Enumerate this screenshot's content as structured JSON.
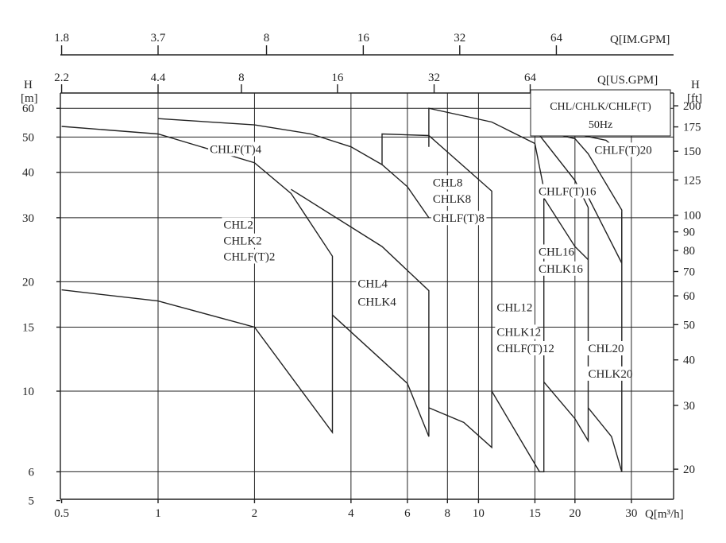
{
  "chart_data": {
    "type": "line",
    "x_axis": {
      "label": "Q[m³/h]",
      "scale": "log",
      "range": [
        0.5,
        40
      ],
      "ticks": [
        0.5,
        1,
        2,
        4,
        6,
        8,
        10,
        15,
        20,
        30
      ],
      "tick_labels": [
        "0.5",
        "1",
        "2",
        "4",
        "6",
        "8",
        "10",
        "15",
        "20",
        "30"
      ]
    },
    "top_axis_im": {
      "label": "Q[IM.GPM]",
      "ticks": [
        {
          "label": "1.8",
          "q": 0.5
        },
        {
          "label": "3.7",
          "q": 1.0
        },
        {
          "label": "8",
          "q": 2.18
        },
        {
          "label": "16",
          "q": 4.37
        },
        {
          "label": "32",
          "q": 8.74
        },
        {
          "label": "64",
          "q": 17.5
        }
      ]
    },
    "top_axis_us": {
      "label": "Q[US.GPM]",
      "ticks": [
        {
          "label": "2.2",
          "q": 0.5
        },
        {
          "label": "4.4",
          "q": 1.0
        },
        {
          "label": "8",
          "q": 1.82
        },
        {
          "label": "16",
          "q": 3.63
        },
        {
          "label": "32",
          "q": 7.27
        },
        {
          "label": "64",
          "q": 14.5
        }
      ]
    },
    "y_axis": {
      "title": "H",
      "unit": "[m]",
      "scale": "log",
      "range": [
        5,
        65
      ],
      "ticks": [
        5,
        6,
        10,
        15,
        20,
        30,
        40,
        50,
        60
      ],
      "tick_labels": [
        "5",
        "6",
        "10",
        "15",
        "20",
        "30",
        "40",
        "50",
        "60"
      ]
    },
    "y_axis_right": {
      "title": "H",
      "unit": "[ft]",
      "ticks": [
        {
          "label": "200",
          "m": 60.96
        },
        {
          "label": "175",
          "m": 53.34
        },
        {
          "label": "150",
          "m": 45.72
        },
        {
          "label": "125",
          "m": 38.1
        },
        {
          "label": "100",
          "m": 30.48
        },
        {
          "label": "90",
          "m": 27.43
        },
        {
          "label": "80",
          "m": 24.38
        },
        {
          "label": "70",
          "m": 21.34
        },
        {
          "label": "60",
          "m": 18.29
        },
        {
          "label": "50",
          "m": 15.24
        },
        {
          "label": "40",
          "m": 12.19
        },
        {
          "label": "30",
          "m": 9.14
        },
        {
          "label": "20",
          "m": 6.1
        }
      ]
    },
    "grid_x": [
      1,
      2,
      4,
      6,
      8,
      10,
      15,
      20,
      30
    ],
    "grid_y": [
      6,
      10,
      15,
      20,
      30,
      40,
      50,
      60
    ],
    "legend_box": {
      "line1": "CHL/CHLK/CHLF(T)",
      "line2": "50Hz"
    },
    "series": [
      {
        "points": [
          [
            0.5,
            19.0
          ],
          [
            1,
            17.7
          ],
          [
            2,
            15.0
          ],
          [
            3.5,
            7.7
          ],
          [
            3.5,
            23.5
          ],
          [
            2.6,
            35.0
          ],
          [
            2,
            42.5
          ],
          [
            1,
            51.0
          ],
          [
            0.5,
            53.5
          ]
        ]
      },
      {
        "points": [
          [
            3.5,
            16.2
          ],
          [
            6,
            10.5
          ],
          [
            7,
            7.5
          ],
          [
            7,
            18.9
          ],
          [
            5,
            25.0
          ],
          [
            2.6,
            35.9
          ]
        ]
      },
      {
        "points": [
          [
            1,
            56.2
          ],
          [
            2,
            54.0
          ],
          [
            3,
            51.0
          ],
          [
            4,
            47.0
          ],
          [
            5,
            42.0
          ],
          [
            6,
            36.5
          ],
          [
            7,
            30.0
          ]
        ]
      },
      {
        "points": [
          [
            7,
            9.0
          ],
          [
            9,
            8.2
          ],
          [
            11,
            7.0
          ],
          [
            11,
            35.5
          ],
          [
            7,
            50.5
          ],
          [
            5,
            51.0
          ],
          [
            5,
            42.0
          ]
        ]
      },
      {
        "points": [
          [
            11,
            10.0
          ],
          [
            15.5,
            6.0
          ],
          [
            16,
            6.0
          ],
          [
            16,
            34.0
          ],
          [
            20,
            25.0
          ],
          [
            22,
            23.0
          ]
        ]
      },
      {
        "points": [
          [
            7,
            47.0
          ],
          [
            7,
            60.0
          ],
          [
            11,
            55.0
          ],
          [
            15,
            48.0
          ],
          [
            16,
            36.0
          ]
        ]
      },
      {
        "points": [
          [
            16,
            10.6
          ],
          [
            20,
            8.4
          ],
          [
            22,
            7.3
          ],
          [
            22,
            32.0
          ],
          [
            20,
            38.0
          ],
          [
            15,
            52.5
          ],
          [
            20,
            49.5
          ],
          [
            22,
            45.0
          ],
          [
            28,
            31.5
          ],
          [
            28,
            22.5
          ],
          [
            22,
            34.2
          ]
        ]
      },
      {
        "points": [
          [
            22,
            9.0
          ],
          [
            26,
            7.5
          ],
          [
            28,
            6.0
          ],
          [
            28,
            31.0
          ]
        ]
      },
      {
        "points": [
          [
            15,
            52.5
          ],
          [
            20,
            51.0
          ],
          [
            25,
            49.0
          ],
          [
            28,
            45.0
          ]
        ]
      }
    ],
    "annotations": [
      {
        "text": "CHLF(T)4",
        "q": 1.45,
        "h": 45.2
      },
      {
        "text": "CHL2",
        "q": 1.6,
        "h": 28.0
      },
      {
        "text": "CHLK2",
        "q": 1.6,
        "h": 25.3
      },
      {
        "text": "CHLF(T)2",
        "q": 1.6,
        "h": 22.9
      },
      {
        "text": "CHL4",
        "q": 4.2,
        "h": 19.3
      },
      {
        "text": "CHLK4",
        "q": 4.2,
        "h": 17.2
      },
      {
        "text": "CHL8",
        "q": 7.2,
        "h": 36.6
      },
      {
        "text": "CHLK8",
        "q": 7.2,
        "h": 33.0
      },
      {
        "text": "CHLF(T)8",
        "q": 7.2,
        "h": 29.2
      },
      {
        "text": "CHL12",
        "q": 11.4,
        "h": 16.6
      },
      {
        "text": "CHLK12",
        "q": 11.4,
        "h": 14.2
      },
      {
        "text": "CHLF(T)12",
        "q": 11.4,
        "h": 12.8
      },
      {
        "text": "CHLF(T)16",
        "q": 15.4,
        "h": 34.6
      },
      {
        "text": "CHL16",
        "q": 15.4,
        "h": 23.6
      },
      {
        "text": "CHLK16",
        "q": 15.4,
        "h": 21.2
      },
      {
        "text": "CHLF(T)20",
        "q": 23.0,
        "h": 45.0
      },
      {
        "text": "CHL20",
        "q": 22.0,
        "h": 12.8
      },
      {
        "text": "CHLK20",
        "q": 22.0,
        "h": 10.9
      }
    ]
  }
}
